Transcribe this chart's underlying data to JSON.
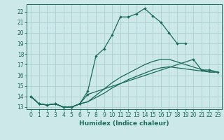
{
  "title": "",
  "xlabel": "Humidex (Indice chaleur)",
  "bg_color": "#cce8e8",
  "grid_color": "#aad0d0",
  "line_color": "#1a6b5a",
  "xlim": [
    -0.5,
    23.5
  ],
  "ylim": [
    12.8,
    22.7
  ],
  "yticks": [
    13,
    14,
    15,
    16,
    17,
    18,
    19,
    20,
    21,
    22
  ],
  "xticks": [
    0,
    1,
    2,
    3,
    4,
    5,
    6,
    7,
    8,
    9,
    10,
    11,
    12,
    13,
    14,
    15,
    16,
    17,
    18,
    19,
    20,
    21,
    22,
    23
  ],
  "curve1_x": [
    0,
    1,
    2,
    3,
    4,
    5,
    6,
    7,
    8,
    9,
    10,
    11,
    12,
    13,
    14,
    15,
    16,
    17,
    18,
    19
  ],
  "curve1_y": [
    14.0,
    13.3,
    13.2,
    13.3,
    13.0,
    13.0,
    13.3,
    14.5,
    17.8,
    18.5,
    19.8,
    21.5,
    21.5,
    21.8,
    22.3,
    21.6,
    21.0,
    20.0,
    19.0,
    19.0
  ],
  "curve2_x": [
    0,
    1,
    2,
    3,
    4,
    5,
    6,
    7,
    20,
    21,
    22,
    23
  ],
  "curve2_y": [
    14.0,
    13.3,
    13.2,
    13.3,
    13.0,
    13.0,
    13.3,
    14.2,
    17.5,
    16.5,
    16.5,
    16.3
  ],
  "curve3_x": [
    0,
    1,
    2,
    3,
    4,
    5,
    6,
    7,
    8,
    9,
    10,
    11,
    12,
    13,
    14,
    15,
    16,
    17,
    22,
    23
  ],
  "curve3_y": [
    14.0,
    13.3,
    13.2,
    13.3,
    13.0,
    13.0,
    13.3,
    13.5,
    13.9,
    14.3,
    14.8,
    15.2,
    15.6,
    15.9,
    16.2,
    16.5,
    16.7,
    16.8,
    16.3,
    16.3
  ],
  "curve4_x": [
    0,
    1,
    2,
    3,
    4,
    5,
    6,
    7,
    8,
    9,
    10,
    11,
    12,
    13,
    14,
    15,
    16,
    17,
    22,
    23
  ],
  "curve4_y": [
    14.0,
    13.3,
    13.2,
    13.3,
    13.0,
    13.0,
    13.3,
    13.5,
    14.1,
    14.7,
    15.3,
    15.8,
    16.2,
    16.6,
    17.0,
    17.3,
    17.5,
    17.5,
    16.3,
    16.3
  ]
}
